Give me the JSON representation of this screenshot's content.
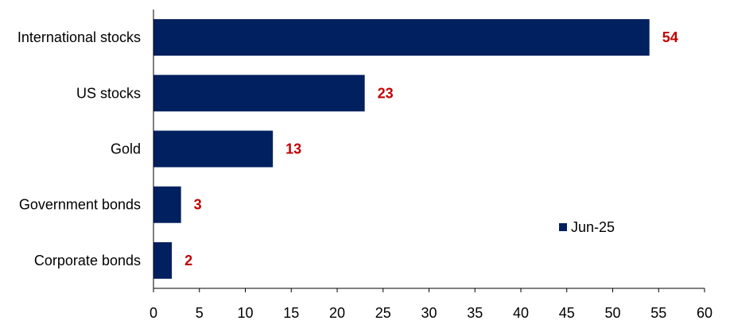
{
  "chart_data": {
    "type": "bar",
    "orientation": "horizontal",
    "categories": [
      "International stocks",
      "US stocks",
      "Gold",
      "Government bonds",
      "Corporate bonds"
    ],
    "series": [
      {
        "name": "Jun-25",
        "values": [
          54,
          23,
          13,
          3,
          2
        ],
        "color": "#002060"
      }
    ],
    "data_labels": [
      "54",
      "23",
      "13",
      "3",
      "2"
    ],
    "data_label_color": "#C00000",
    "xlim": [
      0,
      60
    ],
    "x_ticks": [
      "0",
      "5",
      "10",
      "15",
      "20",
      "25",
      "30",
      "35",
      "40",
      "45",
      "50",
      "55",
      "60"
    ],
    "title": "",
    "xlabel": "",
    "ylabel": "",
    "grid": false,
    "legend": {
      "placement": "bottom-right",
      "entries": [
        "Jun-25"
      ]
    }
  }
}
